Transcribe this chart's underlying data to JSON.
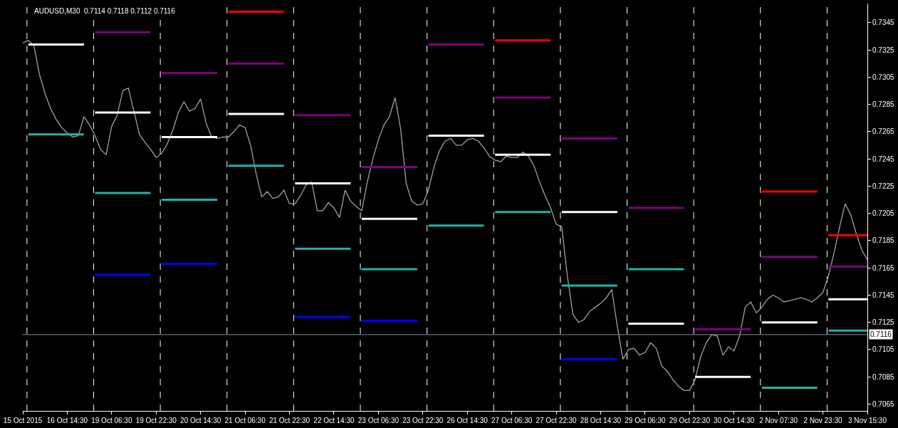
{
  "chart_data": {
    "type": "line",
    "title": "AUDUSD,M30  0.7114 0.7118 0.7112 0.7116",
    "grid": false,
    "marker": "none",
    "line_style": "solid",
    "categories": [
      "15 Oct 2015",
      null,
      null,
      null,
      null,
      null,
      null,
      null,
      "16 Oct 14:30",
      null,
      null,
      null,
      null,
      null,
      null,
      null,
      "19 Oct 06:30",
      null,
      null,
      null,
      null,
      null,
      null,
      null,
      "19 Oct 22:30",
      null,
      null,
      null,
      null,
      null,
      null,
      null,
      "20 Oct 14:30",
      null,
      null,
      null,
      null,
      null,
      null,
      null,
      "21 Oct 06:30",
      null,
      null,
      null,
      null,
      null,
      null,
      null,
      "21 Oct 22:30",
      null,
      null,
      null,
      null,
      null,
      null,
      null,
      "22 Oct 14:30",
      null,
      null,
      null,
      null,
      null,
      null,
      null,
      "23 Oct 06:30",
      null,
      null,
      null,
      null,
      null,
      null,
      null,
      "23 Oct 22:30",
      null,
      null,
      null,
      null,
      null,
      null,
      null,
      "26 Oct 14:30",
      null,
      null,
      null,
      null,
      null,
      null,
      null,
      "27 Oct 06:30",
      null,
      null,
      null,
      null,
      null,
      null,
      null,
      "27 Oct 22:30",
      null,
      null,
      null,
      null,
      null,
      null,
      null,
      "28 Oct 14:30",
      null,
      null,
      null,
      null,
      null,
      null,
      null,
      "29 Oct 06:30",
      null,
      null,
      null,
      null,
      null,
      null,
      null,
      "29 Oct 22:30",
      null,
      null,
      null,
      null,
      null,
      null,
      null,
      "30 Oct 14:30",
      null,
      null,
      null,
      null,
      null,
      null,
      null,
      "2 Nov 07:30",
      null,
      null,
      null,
      null,
      null,
      null,
      null,
      "2 Nov 23:30",
      null,
      null,
      null,
      null,
      null,
      null,
      null,
      "3 Nov 15:30"
    ],
    "ylim": [
      0.706,
      0.7359
    ],
    "yticks": [
      0.7065,
      0.7085,
      0.7105,
      0.7125,
      0.7145,
      0.7165,
      0.7185,
      0.7205,
      0.7225,
      0.7245,
      0.7265,
      0.7285,
      0.7305,
      0.7325,
      0.7345
    ],
    "series": [
      {
        "color": "#a0a0a0",
        "values": [
          0.733,
          0.7332,
          0.7328,
          0.7307,
          0.7293,
          0.7282,
          0.7274,
          0.7268,
          0.7264,
          0.7261,
          0.7262,
          0.7276,
          0.727,
          0.7262,
          0.7252,
          0.7248,
          0.7269,
          0.7277,
          0.7295,
          0.7297,
          0.728,
          0.7263,
          0.7257,
          0.7252,
          0.7246,
          0.7249,
          0.7256,
          0.7266,
          0.7279,
          0.7287,
          0.728,
          0.7282,
          0.7289,
          0.7271,
          0.7261,
          0.726,
          0.7261,
          0.7261,
          0.7265,
          0.727,
          0.7268,
          0.7255,
          0.7234,
          0.7217,
          0.7221,
          0.7216,
          0.7217,
          0.7222,
          0.7212,
          0.7212,
          0.7218,
          0.7226,
          0.7228,
          0.7207,
          0.7207,
          0.7213,
          0.7209,
          0.7202,
          0.7222,
          0.7214,
          0.721,
          0.7207,
          0.7228,
          0.7245,
          0.7259,
          0.727,
          0.7276,
          0.729,
          0.7267,
          0.7227,
          0.7214,
          0.7211,
          0.7212,
          0.7222,
          0.7239,
          0.7251,
          0.7258,
          0.726,
          0.7255,
          0.7255,
          0.7259,
          0.726,
          0.7258,
          0.7253,
          0.7247,
          0.7244,
          0.7243,
          0.7247,
          0.7246,
          0.7246,
          0.725,
          0.7247,
          0.724,
          0.7228,
          0.7218,
          0.7209,
          0.7197,
          0.7195,
          0.7159,
          0.7131,
          0.7125,
          0.7127,
          0.7133,
          0.7136,
          0.7139,
          0.7143,
          0.7149,
          0.7122,
          0.7098,
          0.7105,
          0.7106,
          0.7101,
          0.7103,
          0.711,
          0.7106,
          0.7093,
          0.7089,
          0.7083,
          0.7078,
          0.7075,
          0.7075,
          0.7083,
          0.71,
          0.711,
          0.7116,
          0.7115,
          0.7101,
          0.7107,
          0.7104,
          0.7115,
          0.7136,
          0.714,
          0.7132,
          0.7136,
          0.7142,
          0.7145,
          0.7143,
          0.714,
          0.7141,
          0.7142,
          0.7143,
          0.7142,
          0.714,
          0.7143,
          0.7147,
          0.7159,
          0.7176,
          0.7195,
          0.7212,
          0.7204,
          0.719,
          0.7178,
          0.7171
        ]
      },
      {
        "color": "#ffffff",
        "values": [
          null,
          0.7329,
          0.7329,
          0.7329,
          0.7329,
          0.7329,
          0.7329,
          0.7329,
          0.7329,
          0.7329,
          0.7329,
          0.7329,
          null,
          0.7279,
          0.7279,
          0.7279,
          0.7279,
          0.7279,
          0.7279,
          0.7279,
          0.7279,
          0.7279,
          0.7279,
          0.7279,
          null,
          0.7261,
          0.7261,
          0.7261,
          0.7261,
          0.7261,
          0.7261,
          0.7261,
          0.7261,
          0.7261,
          0.7261,
          0.7261,
          null,
          0.7278,
          0.7278,
          0.7278,
          0.7278,
          0.7278,
          0.7278,
          0.7278,
          0.7278,
          0.7278,
          0.7278,
          0.7278,
          null,
          0.7227,
          0.7227,
          0.7227,
          0.7227,
          0.7227,
          0.7227,
          0.7227,
          0.7227,
          0.7227,
          0.7227,
          0.7227,
          null,
          0.7201,
          0.7201,
          0.7201,
          0.7201,
          0.7201,
          0.7201,
          0.7201,
          0.7201,
          0.7201,
          0.7201,
          0.7201,
          null,
          0.7262,
          0.7262,
          0.7262,
          0.7262,
          0.7262,
          0.7262,
          0.7262,
          0.7262,
          0.7262,
          0.7262,
          0.7262,
          null,
          0.7248,
          0.7248,
          0.7248,
          0.7248,
          0.7248,
          0.7248,
          0.7248,
          0.7248,
          0.7248,
          0.7248,
          0.7248,
          null,
          0.7206,
          0.7206,
          0.7206,
          0.7206,
          0.7206,
          0.7206,
          0.7206,
          0.7206,
          0.7206,
          0.7206,
          0.7206,
          null,
          0.7124,
          0.7124,
          0.7124,
          0.7124,
          0.7124,
          0.7124,
          0.7124,
          0.7124,
          0.7124,
          0.7124,
          0.7124,
          null,
          0.7085,
          0.7085,
          0.7085,
          0.7085,
          0.7085,
          0.7085,
          0.7085,
          0.7085,
          0.7085,
          0.7085,
          0.7085,
          null,
          0.7125,
          0.7125,
          0.7125,
          0.7125,
          0.7125,
          0.7125,
          0.7125,
          0.7125,
          0.7125,
          0.7125,
          0.7125,
          null,
          0.7142,
          0.7142,
          0.7142,
          0.7142,
          0.7142,
          0.7142,
          0.7142,
          0.7142
        ]
      },
      {
        "color": "#ff0000",
        "values": [
          null,
          null,
          null,
          null,
          null,
          null,
          null,
          null,
          null,
          null,
          null,
          null,
          null,
          null,
          null,
          null,
          null,
          null,
          null,
          null,
          null,
          null,
          null,
          null,
          null,
          null,
          null,
          null,
          null,
          null,
          null,
          null,
          null,
          null,
          null,
          null,
          null,
          0.7353,
          0.7353,
          0.7353,
          0.7353,
          0.7353,
          0.7353,
          0.7353,
          0.7353,
          0.7353,
          0.7353,
          0.7353,
          null,
          null,
          null,
          null,
          null,
          null,
          null,
          null,
          null,
          null,
          null,
          null,
          null,
          null,
          null,
          null,
          null,
          null,
          null,
          null,
          null,
          null,
          null,
          null,
          null,
          null,
          null,
          null,
          null,
          null,
          null,
          null,
          null,
          null,
          null,
          null,
          null,
          0.7332,
          0.7332,
          0.7332,
          0.7332,
          0.7332,
          0.7332,
          0.7332,
          0.7332,
          0.7332,
          0.7332,
          0.7332,
          null,
          null,
          null,
          null,
          null,
          null,
          null,
          null,
          null,
          null,
          null,
          null,
          null,
          null,
          null,
          null,
          null,
          null,
          null,
          null,
          null,
          null,
          null,
          null,
          null,
          null,
          null,
          null,
          null,
          null,
          null,
          null,
          null,
          null,
          null,
          null,
          null,
          0.7221,
          0.7221,
          0.7221,
          0.7221,
          0.7221,
          0.7221,
          0.7221,
          0.7221,
          0.7221,
          0.7221,
          0.7221,
          null,
          0.7189,
          0.7189,
          0.7189,
          0.7189,
          0.7189,
          0.7189,
          0.7189,
          0.7189
        ]
      },
      {
        "color": "#800080",
        "values": [
          null,
          null,
          null,
          null,
          null,
          null,
          null,
          null,
          null,
          null,
          null,
          null,
          null,
          0.7338,
          0.7338,
          0.7338,
          0.7338,
          0.7338,
          0.7338,
          0.7338,
          0.7338,
          0.7338,
          0.7338,
          0.7338,
          null,
          0.7308,
          0.7308,
          0.7308,
          0.7308,
          0.7308,
          0.7308,
          0.7308,
          0.7308,
          0.7308,
          0.7308,
          0.7308,
          null,
          0.7315,
          0.7315,
          0.7315,
          0.7315,
          0.7315,
          0.7315,
          0.7315,
          0.7315,
          0.7315,
          0.7315,
          0.7315,
          null,
          0.7277,
          0.7277,
          0.7277,
          0.7277,
          0.7277,
          0.7277,
          0.7277,
          0.7277,
          0.7277,
          0.7277,
          0.7277,
          null,
          0.7239,
          0.7239,
          0.7239,
          0.7239,
          0.7239,
          0.7239,
          0.7239,
          0.7239,
          0.7239,
          0.7239,
          0.7239,
          null,
          0.7329,
          0.7329,
          0.7329,
          0.7329,
          0.7329,
          0.7329,
          0.7329,
          0.7329,
          0.7329,
          0.7329,
          0.7329,
          null,
          0.729,
          0.729,
          0.729,
          0.729,
          0.729,
          0.729,
          0.729,
          0.729,
          0.729,
          0.729,
          0.729,
          null,
          0.726,
          0.726,
          0.726,
          0.726,
          0.726,
          0.726,
          0.726,
          0.726,
          0.726,
          0.726,
          0.726,
          null,
          0.7209,
          0.7209,
          0.7209,
          0.7209,
          0.7209,
          0.7209,
          0.7209,
          0.7209,
          0.7209,
          0.7209,
          0.7209,
          null,
          0.712,
          0.712,
          0.712,
          0.712,
          0.712,
          0.712,
          0.712,
          0.712,
          0.712,
          0.712,
          0.712,
          null,
          0.7173,
          0.7173,
          0.7173,
          0.7173,
          0.7173,
          0.7173,
          0.7173,
          0.7173,
          0.7173,
          0.7173,
          0.7173,
          null,
          0.7166,
          0.7166,
          0.7166,
          0.7166,
          0.7166,
          0.7166,
          0.7166,
          0.7166
        ]
      },
      {
        "color": "#20b2aa",
        "values": [
          null,
          0.7263,
          0.7263,
          0.7263,
          0.7263,
          0.7263,
          0.7263,
          0.7263,
          0.7263,
          0.7263,
          0.7263,
          0.7263,
          null,
          0.722,
          0.722,
          0.722,
          0.722,
          0.722,
          0.722,
          0.722,
          0.722,
          0.722,
          0.722,
          0.722,
          null,
          0.7215,
          0.7215,
          0.7215,
          0.7215,
          0.7215,
          0.7215,
          0.7215,
          0.7215,
          0.7215,
          0.7215,
          0.7215,
          null,
          0.724,
          0.724,
          0.724,
          0.724,
          0.724,
          0.724,
          0.724,
          0.724,
          0.724,
          0.724,
          0.724,
          null,
          0.7179,
          0.7179,
          0.7179,
          0.7179,
          0.7179,
          0.7179,
          0.7179,
          0.7179,
          0.7179,
          0.7179,
          0.7179,
          null,
          0.7164,
          0.7164,
          0.7164,
          0.7164,
          0.7164,
          0.7164,
          0.7164,
          0.7164,
          0.7164,
          0.7164,
          0.7164,
          null,
          0.7196,
          0.7196,
          0.7196,
          0.7196,
          0.7196,
          0.7196,
          0.7196,
          0.7196,
          0.7196,
          0.7196,
          0.7196,
          null,
          0.7206,
          0.7206,
          0.7206,
          0.7206,
          0.7206,
          0.7206,
          0.7206,
          0.7206,
          0.7206,
          0.7206,
          0.7206,
          null,
          0.7152,
          0.7152,
          0.7152,
          0.7152,
          0.7152,
          0.7152,
          0.7152,
          0.7152,
          0.7152,
          0.7152,
          0.7152,
          null,
          0.7164,
          0.7164,
          0.7164,
          0.7164,
          0.7164,
          0.7164,
          0.7164,
          0.7164,
          0.7164,
          0.7164,
          0.7164,
          null,
          null,
          null,
          null,
          null,
          null,
          null,
          null,
          null,
          null,
          null,
          null,
          null,
          0.7077,
          0.7077,
          0.7077,
          0.7077,
          0.7077,
          0.7077,
          0.7077,
          0.7077,
          0.7077,
          0.7077,
          0.7077,
          null,
          0.7119,
          0.7119,
          0.7119,
          0.7119,
          0.7119,
          0.7119,
          0.7119,
          0.7119
        ]
      },
      {
        "color": "#0000ff",
        "values": [
          null,
          null,
          null,
          null,
          null,
          null,
          null,
          null,
          null,
          null,
          null,
          null,
          null,
          0.716,
          0.716,
          0.716,
          0.716,
          0.716,
          0.716,
          0.716,
          0.716,
          0.716,
          0.716,
          0.716,
          null,
          0.7168,
          0.7168,
          0.7168,
          0.7168,
          0.7168,
          0.7168,
          0.7168,
          0.7168,
          0.7168,
          0.7168,
          0.7168,
          null,
          null,
          null,
          null,
          null,
          null,
          null,
          null,
          null,
          null,
          null,
          null,
          null,
          0.7129,
          0.7129,
          0.7129,
          0.7129,
          0.7129,
          0.7129,
          0.7129,
          0.7129,
          0.7129,
          0.7129,
          0.7129,
          null,
          0.7126,
          0.7126,
          0.7126,
          0.7126,
          0.7126,
          0.7126,
          0.7126,
          0.7126,
          0.7126,
          0.7126,
          0.7126,
          null,
          null,
          null,
          null,
          null,
          null,
          null,
          null,
          null,
          null,
          null,
          null,
          null,
          null,
          null,
          null,
          null,
          null,
          null,
          null,
          null,
          null,
          null,
          null,
          null,
          0.7098,
          0.7098,
          0.7098,
          0.7098,
          0.7098,
          0.7098,
          0.7098,
          0.7098,
          0.7098,
          0.7098,
          0.7098,
          null,
          null,
          null,
          null,
          null,
          null,
          null,
          null,
          null,
          null,
          null,
          null,
          null,
          null,
          null,
          null,
          null,
          null,
          null,
          null,
          null,
          null,
          null,
          null,
          null,
          null,
          null,
          null,
          null,
          null,
          null,
          null,
          null,
          null,
          null,
          null,
          null,
          null,
          null,
          null,
          null,
          null,
          null,
          null,
          null
        ]
      }
    ],
    "ref_lines": [
      {
        "axis": "y",
        "value": 0.7116,
        "label": "0.7116",
        "color": "#8090a8",
        "line_style": "solid"
      }
    ]
  }
}
